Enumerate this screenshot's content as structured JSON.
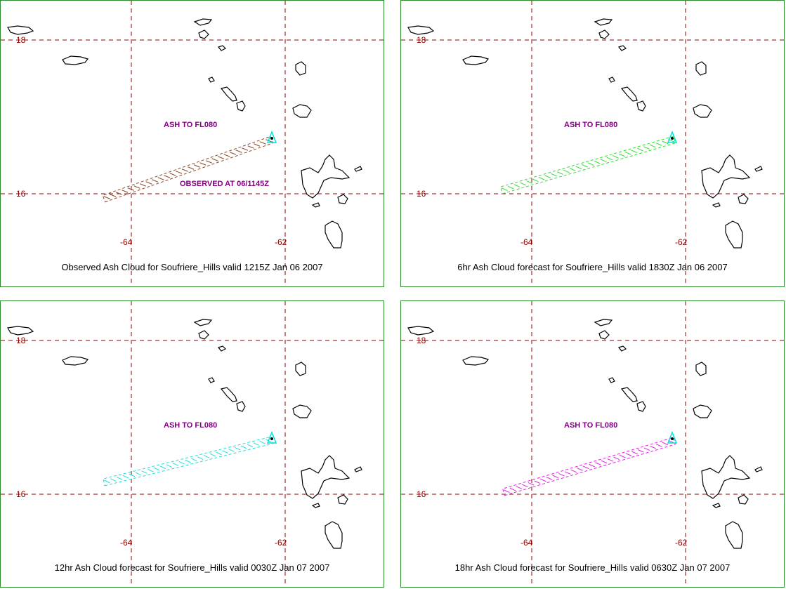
{
  "colors": {
    "panel_border": "#2e8b2e",
    "grid": "#8b0000",
    "grid_label": "#8b0000",
    "annotation": "#800080",
    "volcano": "#00e0e0",
    "coast": "#000000"
  },
  "panels": [
    {
      "caption": "Observed Ash Cloud for Soufriere_Hills valid 1215Z Jan 06 2007",
      "ash_label": "ASH TO FL080",
      "observed_label": "OBSERVED AT 06/1145Z",
      "cloud_color": "#8b4a2b",
      "lat_labels": [
        "18",
        "16"
      ],
      "lon_labels": [
        "-64",
        "-62"
      ]
    },
    {
      "caption": "6hr Ash Cloud forecast for Soufriere_Hills valid 1830Z Jan 06 2007",
      "ash_label": "ASH TO FL080",
      "observed_label": "",
      "cloud_color": "#33dd33",
      "lat_labels": [
        "18",
        "16"
      ],
      "lon_labels": [
        "-64",
        "-62"
      ]
    },
    {
      "caption": "12hr Ash Cloud forecast for Soufriere_Hills valid 0030Z Jan 07 2007",
      "ash_label": "ASH TO FL080",
      "observed_label": "",
      "cloud_color": "#22dddd",
      "lat_labels": [
        "18",
        "16"
      ],
      "lon_labels": [
        "-64",
        "-62"
      ]
    },
    {
      "caption": "18hr Ash Cloud forecast for Soufriere_Hills valid 0630Z Jan 07 2007",
      "ash_label": "ASH TO FL080",
      "observed_label": "",
      "cloud_color": "#dd22dd",
      "lat_labels": [
        "18",
        "16"
      ],
      "lon_labels": [
        "-64",
        "-62"
      ]
    }
  ]
}
